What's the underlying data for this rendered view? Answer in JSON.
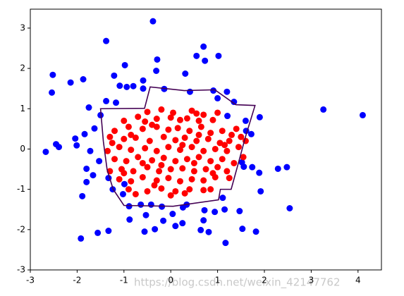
{
  "chart_data": {
    "type": "scatter",
    "xlim": [
      -3,
      4.5
    ],
    "ylim": [
      -3,
      3.47
    ],
    "xticks": [
      -3,
      -2,
      -1,
      0,
      1,
      2,
      3,
      4
    ],
    "yticks": [
      -3,
      -2,
      -1,
      0,
      1,
      2,
      3
    ],
    "series": [
      {
        "color": "#0000ff",
        "x": [
          -0.38,
          -1.38,
          -2.52,
          -2.54,
          -2.14,
          -1.87,
          -1.21,
          -0.98,
          -0.29,
          -0.31,
          0.31,
          0.7,
          0.55,
          0.73,
          1.02,
          -1.09,
          -0.94,
          -0.8,
          -0.59,
          -0.59,
          -0.14,
          0.41,
          0.91,
          1.0,
          1.2,
          -1.38,
          -1.17,
          -1.5,
          -1.75,
          -1.84,
          -2.04,
          -2.01,
          -2.45,
          -2.39,
          -2.67,
          -1.72,
          -1.63,
          -1.53,
          -1.8,
          -1.66,
          -1.8,
          -1.33,
          -1.24,
          -1.02,
          -1.89,
          -0.99,
          -0.64,
          -0.42,
          -0.19,
          0.26,
          0.34,
          0.04,
          -0.16,
          0.1,
          0.25,
          0.72,
          0.7,
          0.94,
          1.15,
          0.81,
          1.11,
          1.47,
          1.53,
          1.82,
          1.17,
          0.64,
          -0.34,
          -0.56,
          -0.88,
          -0.89,
          -1.33,
          -1.56,
          -1.92,
          -0.53,
          2.54,
          1.92,
          1.89,
          1.52,
          1.56,
          1.74,
          1.72,
          1.61,
          1.9,
          1.6,
          2.48,
          2.29,
          1.35,
          3.26,
          4.1,
          1.21
        ],
        "values": [
          3.17,
          2.68,
          1.84,
          1.4,
          1.65,
          1.73,
          1.82,
          2.08,
          2.22,
          1.94,
          1.87,
          2.54,
          2.31,
          2.19,
          2.31,
          1.57,
          1.54,
          1.56,
          1.7,
          1.5,
          1.49,
          1.42,
          1.45,
          1.26,
          1.42,
          1.19,
          1.15,
          0.84,
          1.03,
          0.37,
          0.26,
          0.09,
          0.12,
          0.05,
          -0.07,
          -0.05,
          0.51,
          -0.3,
          -0.49,
          -0.65,
          -0.82,
          -0.72,
          -1.0,
          -1.12,
          -1.17,
          -0.87,
          -1.38,
          -1.38,
          -1.43,
          -1.45,
          -1.38,
          -1.61,
          -1.78,
          -1.91,
          -1.84,
          -1.52,
          -1.77,
          -1.56,
          -1.5,
          -2.06,
          -1.21,
          -1.54,
          -1.98,
          -2.05,
          -2.33,
          -2.01,
          -1.99,
          -2.05,
          -1.75,
          -1.42,
          -2.03,
          -2.08,
          -2.22,
          -1.64,
          -1.47,
          -1.05,
          -0.59,
          -0.33,
          -0.44,
          -0.45,
          0.37,
          0.45,
          0.79,
          0.7,
          -0.45,
          -0.49,
          1.17,
          0.98,
          0.84,
          0.82
        ]
      },
      {
        "color": "#ff0000",
        "x": [
          -0.5,
          -0.2,
          0.45,
          0.55,
          0.7,
          1.0,
          -0.7,
          -0.3,
          0.0,
          0.2,
          0.35,
          0.6,
          0.9,
          -0.55,
          -1.0,
          -1.2,
          -0.9,
          -0.6,
          -0.3,
          -0.05,
          0.15,
          0.4,
          0.65,
          0.85,
          1.1,
          1.3,
          1.5,
          -1.3,
          -1.0,
          -0.75,
          -0.45,
          -0.15,
          0.1,
          0.3,
          0.55,
          0.8,
          1.05,
          1.25,
          1.6,
          -1.25,
          -1.35,
          -1.1,
          -0.85,
          -0.55,
          -0.3,
          -0.05,
          0.2,
          0.45,
          0.7,
          0.95,
          1.2,
          1.45,
          1.15,
          -1.2,
          -0.95,
          -0.7,
          -0.4,
          -0.15,
          0.1,
          0.35,
          0.6,
          0.85,
          1.1,
          1.35,
          1.55,
          -1.3,
          -1.05,
          -0.8,
          -0.5,
          -0.25,
          0.0,
          0.25,
          0.5,
          0.75,
          1.0,
          1.2,
          -1.1,
          -0.85,
          -0.6,
          -0.3,
          -0.05,
          0.2,
          0.45,
          0.7,
          0.95,
          1.25,
          -0.9,
          -0.5,
          -0.2,
          0.1,
          0.4,
          0.7,
          0.85,
          -0.75,
          0.0,
          0.3,
          -0.4,
          0.05,
          -0.85,
          0.5,
          -0.6,
          0.25,
          -0.2,
          0.9,
          -1.0,
          0.6,
          -0.35,
          1.4
        ],
        "values": [
          0.92,
          0.98,
          0.95,
          0.88,
          0.85,
          0.9,
          0.8,
          0.75,
          0.78,
          0.72,
          0.76,
          0.7,
          0.72,
          0.68,
          0.7,
          0.45,
          0.55,
          0.5,
          0.55,
          0.48,
          0.52,
          0.45,
          0.55,
          0.4,
          0.45,
          0.35,
          0.3,
          0.3,
          0.25,
          0.28,
          0.2,
          0.3,
          0.22,
          0.28,
          0.2,
          0.25,
          0.15,
          0.2,
          0.2,
          0.15,
          -0.05,
          0.05,
          -0.02,
          0.02,
          -0.05,
          0.05,
          -0.02,
          0.05,
          -0.05,
          0.0,
          -0.05,
          0.05,
          0.1,
          -0.25,
          -0.3,
          -0.2,
          -0.28,
          -0.22,
          -0.3,
          -0.25,
          -0.2,
          -0.3,
          -0.25,
          -0.35,
          -0.2,
          -0.55,
          -0.5,
          -0.55,
          -0.45,
          -0.55,
          -0.5,
          -0.48,
          -0.55,
          -0.5,
          -0.45,
          -0.55,
          -0.75,
          -0.8,
          -0.7,
          -0.78,
          -0.72,
          -0.8,
          -0.75,
          -0.78,
          -0.7,
          -0.72,
          -1.0,
          -1.05,
          -0.98,
          -1.05,
          -1.0,
          -1.02,
          -1.0,
          -1.12,
          -1.15,
          -1.1,
          0.6,
          0.9,
          0.35,
          -0.35,
          -0.35,
          0.1,
          -0.4,
          -0.6,
          -0.6,
          0.35,
          -0.9,
          0.5
        ]
      }
    ],
    "contour": {
      "color": "#440154",
      "x": [
        -1.5,
        -0.56,
        -0.44,
        0.29,
        0.94,
        1.39,
        1.8,
        1.59,
        1.47,
        1.29,
        1.06,
        1.02,
        0.05,
        -1.0,
        -1.23,
        -1.36,
        -1.44
      ],
      "values": [
        1.0,
        1.01,
        1.54,
        1.45,
        1.47,
        1.1,
        1.08,
        0.28,
        -0.24,
        -1.0,
        -1.0,
        -1.26,
        -1.42,
        -1.4,
        -1.0,
        -0.51,
        0.19
      ]
    }
  },
  "watermark": "https://blog.csdn.net/weixin_42147762"
}
